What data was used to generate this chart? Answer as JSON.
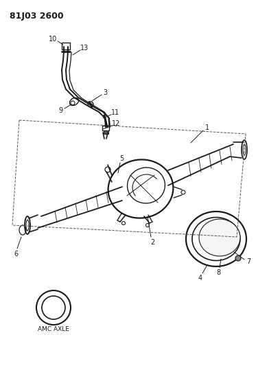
{
  "title": "81J03 2600",
  "subtitle": "AMC AXLE",
  "bg_color": "#ffffff",
  "line_color": "#1a1a1a",
  "text_color": "#1a1a1a",
  "fig_width": 3.92,
  "fig_height": 5.33,
  "dpi": 100
}
